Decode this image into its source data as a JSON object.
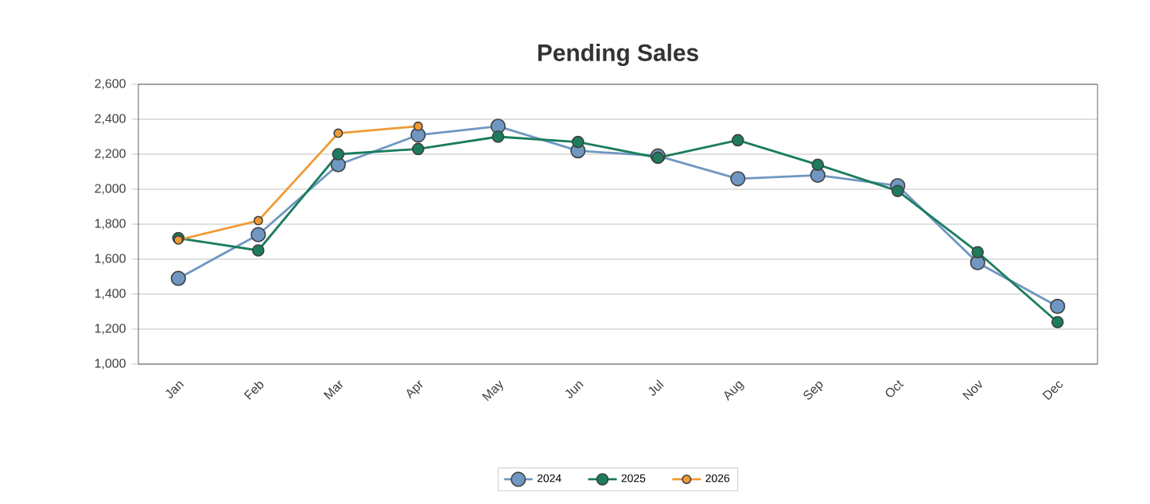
{
  "chart_data": {
    "type": "line",
    "title": "Pending Sales",
    "categories": [
      "Jan",
      "Feb",
      "Mar",
      "Apr",
      "May",
      "Jun",
      "Jul",
      "Aug",
      "Sep",
      "Oct",
      "Nov",
      "Dec"
    ],
    "series": [
      {
        "name": "2024",
        "color": "#6f97c2",
        "values": [
          1490,
          1740,
          2140,
          2310,
          2360,
          2220,
          2190,
          2060,
          2080,
          2020,
          1580,
          1330
        ]
      },
      {
        "name": "2025",
        "color": "#1b7d5e",
        "values": [
          1720,
          1650,
          2200,
          2230,
          2300,
          2270,
          2180,
          2280,
          2140,
          1990,
          1640,
          1240
        ]
      },
      {
        "name": "2026",
        "color": "#ef9a35",
        "values": [
          1710,
          1820,
          2320,
          2360,
          null,
          null,
          null,
          null,
          null,
          null,
          null,
          null
        ]
      }
    ],
    "ylim": [
      1000,
      2600
    ],
    "yticks": [
      {
        "value": 1000,
        "label": "1,000"
      },
      {
        "value": 1200,
        "label": "1,200"
      },
      {
        "value": 1400,
        "label": "1,400"
      },
      {
        "value": 1600,
        "label": "1,600"
      },
      {
        "value": 1800,
        "label": "1,800"
      },
      {
        "value": 2000,
        "label": "2,000"
      },
      {
        "value": 2200,
        "label": "2,200"
      },
      {
        "value": 2400,
        "label": "2,400"
      },
      {
        "value": 2600,
        "label": "2,600"
      }
    ],
    "grid": "y",
    "legend": "bottom",
    "marker": "circle",
    "line_style": "solid"
  }
}
